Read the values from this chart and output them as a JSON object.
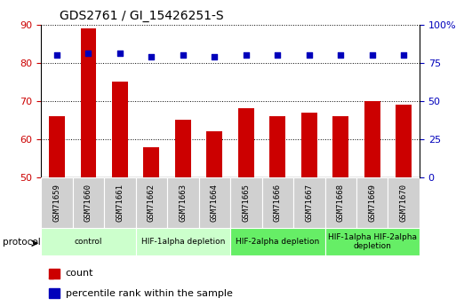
{
  "title": "GDS2761 / GI_15426251-S",
  "samples": [
    "GSM71659",
    "GSM71660",
    "GSM71661",
    "GSM71662",
    "GSM71663",
    "GSM71664",
    "GSM71665",
    "GSM71666",
    "GSM71667",
    "GSM71668",
    "GSM71669",
    "GSM71670"
  ],
  "counts": [
    66,
    89,
    75,
    58,
    65,
    62,
    68,
    66,
    67,
    66,
    70,
    69
  ],
  "percentile_ranks": [
    80,
    81,
    81,
    79,
    80,
    79,
    80,
    80,
    80,
    80,
    80,
    80
  ],
  "ylim_left": [
    50,
    90
  ],
  "ylim_right": [
    0,
    100
  ],
  "yticks_left": [
    50,
    60,
    70,
    80,
    90
  ],
  "yticks_right": [
    0,
    25,
    50,
    75,
    100
  ],
  "right_tick_labels": [
    "0",
    "25",
    "50",
    "75",
    "100%"
  ],
  "bar_color": "#cc0000",
  "dot_color": "#0000bb",
  "grid_color": "#000000",
  "group_boundaries": [
    {
      "start": 0,
      "end": 2,
      "label": "control",
      "color": "#ccffcc"
    },
    {
      "start": 3,
      "end": 5,
      "label": "HIF-1alpha depletion",
      "color": "#ccffcc"
    },
    {
      "start": 6,
      "end": 8,
      "label": "HIF-2alpha depletion",
      "color": "#66ee66"
    },
    {
      "start": 9,
      "end": 11,
      "label": "HIF-1alpha HIF-2alpha\ndepletion",
      "color": "#66ee66"
    }
  ],
  "sample_bg_color": "#d0d0d0",
  "legend_items": [
    {
      "label": "count",
      "color": "#cc0000"
    },
    {
      "label": "percentile rank within the sample",
      "color": "#0000bb"
    }
  ],
  "tick_label_color_left": "#cc0000",
  "tick_label_color_right": "#0000bb"
}
